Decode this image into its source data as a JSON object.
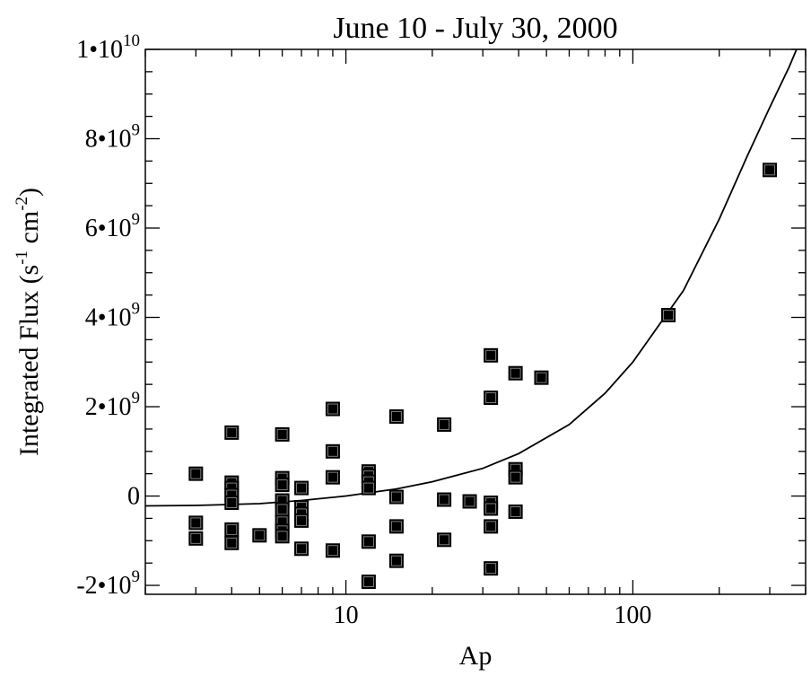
{
  "chart_data": {
    "type": "scatter",
    "title": "June 10 - July 30, 2000",
    "xlabel": "Ap",
    "ylabel": {
      "text": "Integrated Flux (s",
      "exp1": "-1",
      "mid": " cm",
      "exp2": "-2",
      "end": ")"
    },
    "x_scale": "log",
    "xlim": [
      2,
      400
    ],
    "ylim": [
      -2200000000.0,
      10000000000.0
    ],
    "grid": false,
    "x_ticks": [
      {
        "value": 10,
        "label": "10"
      },
      {
        "value": 100,
        "label": "100"
      }
    ],
    "y_ticks": [
      {
        "value": -2000000000.0,
        "base": "-2•10",
        "exp": "9"
      },
      {
        "value": 0,
        "base": "0",
        "exp": ""
      },
      {
        "value": 2000000000.0,
        "base": "2•10",
        "exp": "9"
      },
      {
        "value": 4000000000.0,
        "base": "4•10",
        "exp": "9"
      },
      {
        "value": 6000000000.0,
        "base": "6•10",
        "exp": "9"
      },
      {
        "value": 8000000000.0,
        "base": "8•10",
        "exp": "9"
      },
      {
        "value": 10000000000.0,
        "base": "1•10",
        "exp": "10"
      }
    ],
    "series": [
      {
        "marker": "filled-square",
        "color": "#000000",
        "points": [
          [
            3,
            500000000.0
          ],
          [
            3,
            -600000000.0
          ],
          [
            3,
            -950000000.0
          ],
          [
            4,
            1420000000.0
          ],
          [
            4,
            300000000.0
          ],
          [
            4,
            180000000.0
          ],
          [
            4,
            20000000.0
          ],
          [
            4,
            -150000000.0
          ],
          [
            4,
            -750000000.0
          ],
          [
            4,
            -1050000000.0
          ],
          [
            5,
            -880000000.0
          ],
          [
            6,
            1380000000.0
          ],
          [
            6,
            400000000.0
          ],
          [
            6,
            250000000.0
          ],
          [
            6,
            -100000000.0
          ],
          [
            6,
            -300000000.0
          ],
          [
            6,
            -580000000.0
          ],
          [
            6,
            -780000000.0
          ],
          [
            6,
            -900000000.0
          ],
          [
            7,
            180000000.0
          ],
          [
            7,
            -250000000.0
          ],
          [
            7,
            -400000000.0
          ],
          [
            7,
            -550000000.0
          ],
          [
            7,
            -1180000000.0
          ],
          [
            9,
            1950000000.0
          ],
          [
            9,
            1000000000.0
          ],
          [
            9,
            420000000.0
          ],
          [
            9,
            -1220000000.0
          ],
          [
            12,
            550000000.0
          ],
          [
            12,
            450000000.0
          ],
          [
            12,
            320000000.0
          ],
          [
            12,
            180000000.0
          ],
          [
            12,
            -1020000000.0
          ],
          [
            12,
            -1920000000.0
          ],
          [
            15,
            1780000000.0
          ],
          [
            15,
            -20000000.0
          ],
          [
            15,
            -680000000.0
          ],
          [
            15,
            -1450000000.0
          ],
          [
            22,
            1600000000.0
          ],
          [
            22,
            -80000000.0
          ],
          [
            22,
            -980000000.0
          ],
          [
            27,
            -120000000.0
          ],
          [
            32,
            3150000000.0
          ],
          [
            32,
            2200000000.0
          ],
          [
            32,
            -150000000.0
          ],
          [
            32,
            -280000000.0
          ],
          [
            32,
            -680000000.0
          ],
          [
            32,
            -1620000000.0
          ],
          [
            39,
            2750000000.0
          ],
          [
            39,
            600000000.0
          ],
          [
            39,
            420000000.0
          ],
          [
            39,
            -350000000.0
          ],
          [
            48,
            2650000000.0
          ],
          [
            133,
            4050000000.0
          ],
          [
            300,
            7300000000.0
          ]
        ]
      }
    ],
    "fit_curve": {
      "style": "solid",
      "color": "#000000",
      "points": [
        [
          2,
          -220000000.0
        ],
        [
          3,
          -210000000.0
        ],
        [
          5,
          -170000000.0
        ],
        [
          7,
          -100000000.0
        ],
        [
          10,
          0.0
        ],
        [
          15,
          160000000.0
        ],
        [
          20,
          320000000.0
        ],
        [
          30,
          620000000.0
        ],
        [
          40,
          950000000.0
        ],
        [
          60,
          1600000000.0
        ],
        [
          80,
          2300000000.0
        ],
        [
          100,
          3000000000.0
        ],
        [
          150,
          4600000000.0
        ],
        [
          200,
          6200000000.0
        ],
        [
          250,
          7600000000.0
        ],
        [
          300,
          8700000000.0
        ],
        [
          350,
          9600000000.0
        ],
        [
          372,
          10000000000.0
        ]
      ]
    }
  }
}
